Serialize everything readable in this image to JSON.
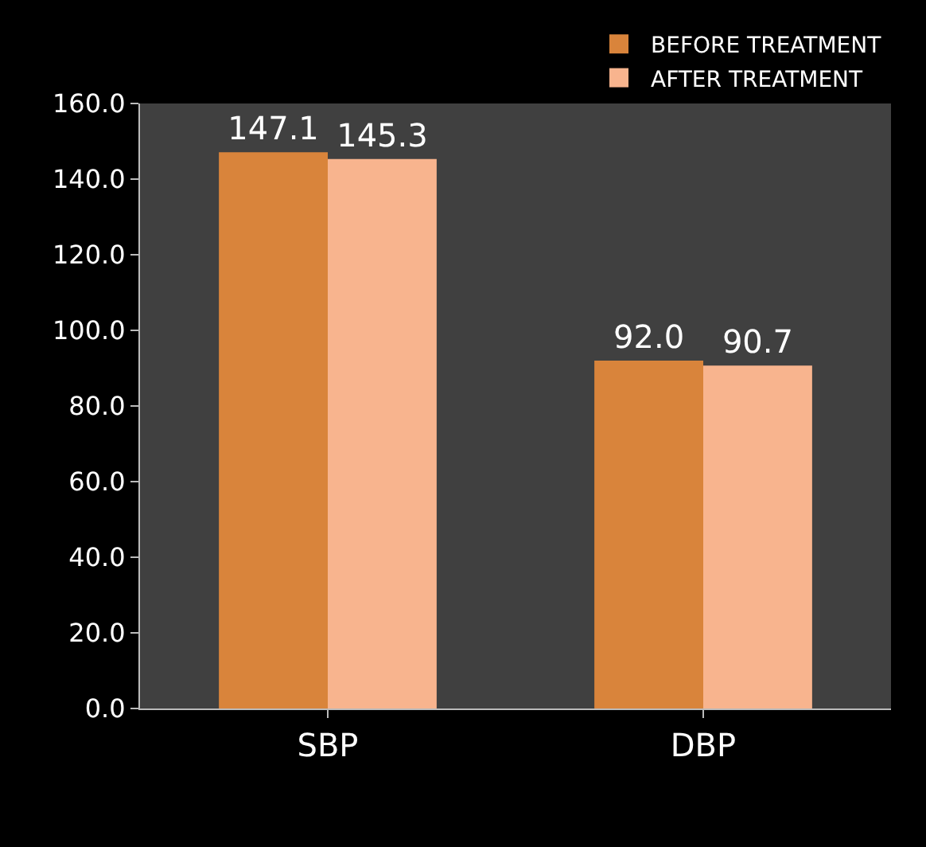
{
  "chart_data": {
    "type": "bar",
    "categories": [
      "SBP",
      "DBP"
    ],
    "series": [
      {
        "name": "BEFORE TREATMENT",
        "color": "#d9843b",
        "values": [
          147.1,
          92.0
        ]
      },
      {
        "name": "AFTER TREATMENT",
        "color": "#f8b48e",
        "values": [
          145.3,
          90.7
        ]
      }
    ],
    "value_labels": [
      [
        "147.1",
        "92.0"
      ],
      [
        "145.3",
        "90.7"
      ]
    ],
    "ylim": [
      0,
      160
    ],
    "yticks": [
      {
        "value": 0,
        "label": "0.0"
      },
      {
        "value": 20,
        "label": "20.0"
      },
      {
        "value": 40,
        "label": "40.0"
      },
      {
        "value": 60,
        "label": "60.0"
      },
      {
        "value": 80,
        "label": "80.0"
      },
      {
        "value": 100,
        "label": "100.0"
      },
      {
        "value": 120,
        "label": "120.0"
      },
      {
        "value": 140,
        "label": "140.0"
      },
      {
        "value": 160,
        "label": "160.0"
      }
    ],
    "grid": false,
    "legend": "top right"
  }
}
